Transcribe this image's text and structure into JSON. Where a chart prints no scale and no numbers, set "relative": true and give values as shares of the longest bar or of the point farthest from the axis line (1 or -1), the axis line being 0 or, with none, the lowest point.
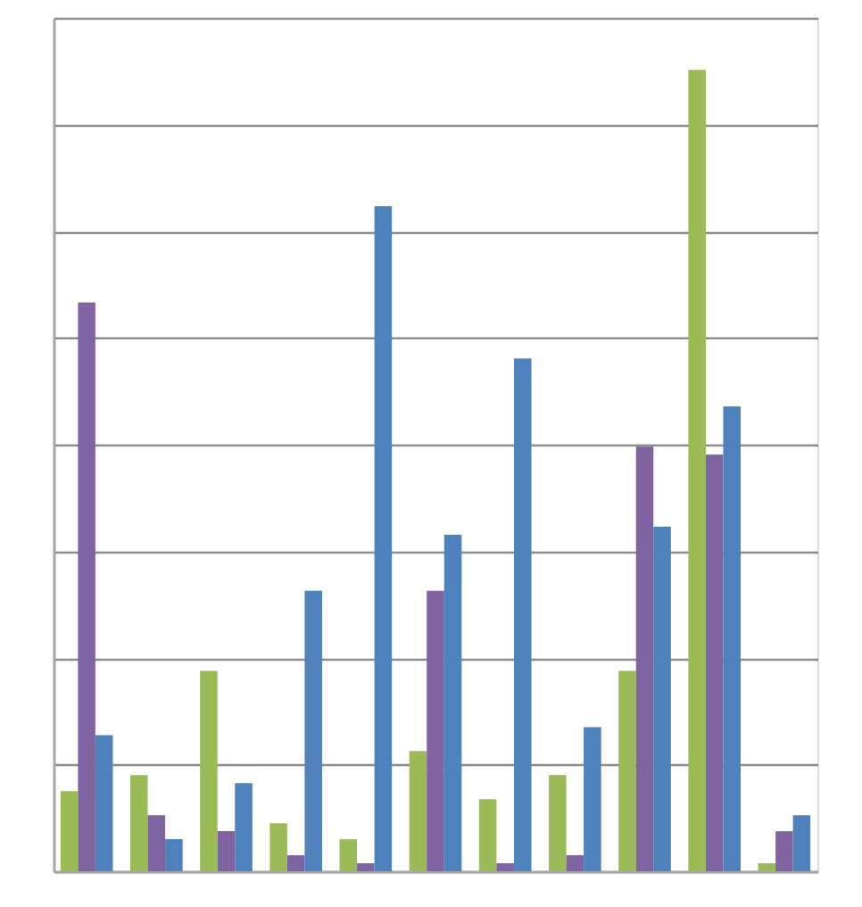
{
  "chart_data": {
    "type": "bar",
    "relative": true,
    "grid": "y",
    "legend": false,
    "categories": [
      null,
      null,
      null,
      null,
      null,
      null,
      null,
      null,
      null,
      null,
      null
    ],
    "series": [
      {
        "color": "#9bbb59",
        "values": [
          0.1,
          0.12,
          0.25,
          0.06,
          0.04,
          0.15,
          0.09,
          0.12,
          0.25,
          1,
          0.01
        ]
      },
      {
        "color": "#8064a2",
        "values": [
          0.71,
          0.07,
          0.05,
          0.02,
          0.01,
          0.35,
          0.01,
          0.02,
          0.53,
          0.52,
          0.05
        ]
      },
      {
        "color": "#4f81bd",
        "values": [
          0.17,
          0.04,
          0.11,
          0.35,
          0.83,
          0.42,
          0.64,
          0.18,
          0.43,
          0.58,
          0.07
        ]
      }
    ]
  }
}
